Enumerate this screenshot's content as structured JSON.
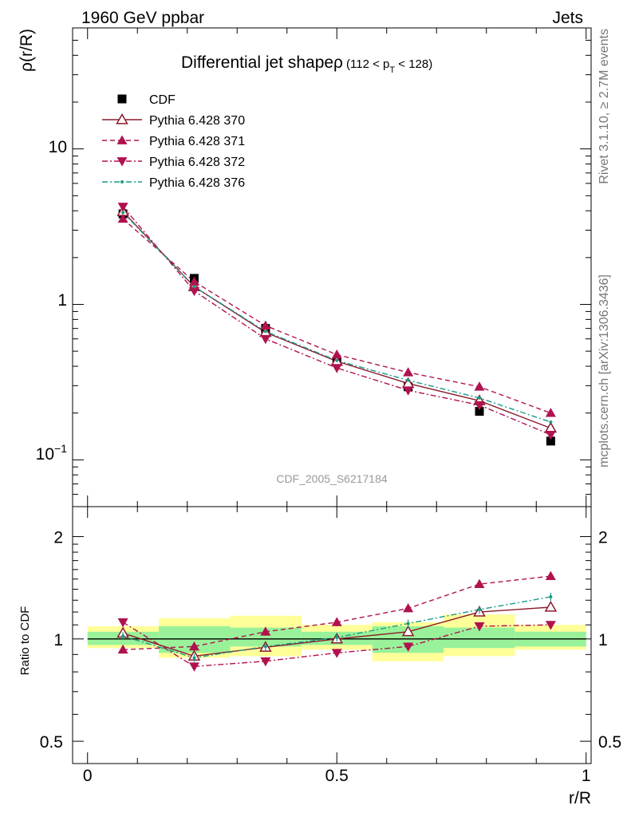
{
  "header": {
    "left": "1960 GeV ppbar",
    "right": "Jets"
  },
  "side_text": {
    "top": "Rivet 3.1.10, ≥ 2.7M events",
    "bottom": "mcplots.cern.ch [arXiv:1306.3436]"
  },
  "chart_data": [
    {
      "type": "line",
      "title": "Differential jet shapeρ",
      "title_sub": "(112 < p_T < 128)",
      "title_sub_parts": {
        "open": "(112 < p",
        "subscript": "T",
        "close": " < 128)"
      },
      "watermark": "CDF_2005_S6217184",
      "ylabel": "ρ(r/R)",
      "yscale": "log",
      "ylim": [
        0.05,
        60
      ],
      "xlim": [
        -0.03,
        1.01
      ],
      "x": [
        0.071,
        0.214,
        0.357,
        0.5,
        0.643,
        0.786,
        0.929
      ],
      "y_tick_labels": {
        "ten": "10",
        "one": "1",
        "tenth_base": "10",
        "tenth_exp": "−1"
      },
      "legend": {
        "placement": "top-left",
        "entries": [
          "CDF",
          "Pythia 6.428 370",
          "Pythia 6.428 371",
          "Pythia 6.428 372",
          "Pythia 6.428 376"
        ]
      },
      "series": [
        {
          "name": "CDF",
          "color": "#000000",
          "marker": "filled-square",
          "line": "none",
          "values": [
            3.82,
            1.47,
            0.7,
            0.43,
            0.295,
            0.205,
            0.132
          ]
        },
        {
          "name": "Pythia 6.428 370",
          "color": "#8b1a2b",
          "marker": "open-triangle-up",
          "line": "solid",
          "values": [
            3.95,
            1.3,
            0.66,
            0.43,
            0.31,
            0.24,
            0.16
          ]
        },
        {
          "name": "Pythia 6.428 371",
          "color": "#b0124f",
          "marker": "filled-triangle-up",
          "line": "dashed",
          "values": [
            3.55,
            1.4,
            0.73,
            0.475,
            0.365,
            0.295,
            0.2
          ]
        },
        {
          "name": "Pythia 6.428 372",
          "color": "#b0124f",
          "marker": "filled-triangle-down",
          "line": "dashdot",
          "values": [
            4.25,
            1.22,
            0.6,
            0.39,
            0.28,
            0.225,
            0.145
          ]
        },
        {
          "name": "Pythia 6.428 376",
          "color": "#1a9a8a",
          "marker": "small-dot",
          "line": "dashdot",
          "values": [
            3.9,
            1.3,
            0.67,
            0.435,
            0.325,
            0.25,
            0.175
          ]
        }
      ]
    },
    {
      "type": "line",
      "ylabel": "Ratio to CDF",
      "xlabel": "r/R",
      "yscale": "log",
      "ylim": [
        0.43,
        2.45
      ],
      "xlim": [
        -0.03,
        1.01
      ],
      "y_ticks": [
        0.5,
        1,
        2
      ],
      "y_tick_labels": [
        "0.5",
        "1",
        "2"
      ],
      "x_ticks": [
        0,
        0.5,
        1
      ],
      "x_tick_labels": [
        "0",
        "0.5",
        "1"
      ],
      "bins": [
        [
          0.0,
          0.143
        ],
        [
          0.143,
          0.286
        ],
        [
          0.286,
          0.429
        ],
        [
          0.429,
          0.571
        ],
        [
          0.571,
          0.714
        ],
        [
          0.714,
          0.857
        ],
        [
          0.857,
          1.0
        ]
      ],
      "band_inner": [
        [
          0.96,
          1.05
        ],
        [
          0.91,
          1.09
        ],
        [
          0.95,
          1.08
        ],
        [
          0.96,
          1.05
        ],
        [
          0.91,
          1.09
        ],
        [
          0.94,
          1.08
        ],
        [
          0.95,
          1.05
        ]
      ],
      "band_outer": [
        [
          0.94,
          1.09
        ],
        [
          0.88,
          1.15
        ],
        [
          0.89,
          1.17
        ],
        [
          0.93,
          1.1
        ],
        [
          0.86,
          1.12
        ],
        [
          0.89,
          1.18
        ],
        [
          0.93,
          1.1
        ]
      ],
      "x": [
        0.071,
        0.214,
        0.357,
        0.5,
        0.643,
        0.786,
        0.929
      ],
      "series": [
        {
          "name": "Pythia 6.428 370",
          "values": [
            1.04,
            0.89,
            0.945,
            1.0,
            1.05,
            1.2,
            1.24
          ]
        },
        {
          "name": "Pythia 6.428 371",
          "values": [
            0.93,
            0.95,
            1.05,
            1.12,
            1.23,
            1.45,
            1.53
          ]
        },
        {
          "name": "Pythia 6.428 372",
          "values": [
            1.12,
            0.83,
            0.86,
            0.91,
            0.95,
            1.09,
            1.1
          ]
        },
        {
          "name": "Pythia 6.428 376",
          "values": [
            1.02,
            0.88,
            0.95,
            1.01,
            1.11,
            1.22,
            1.33
          ]
        }
      ]
    }
  ]
}
